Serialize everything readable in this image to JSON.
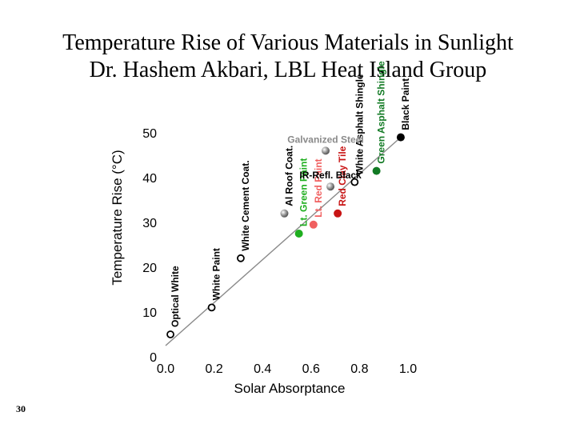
{
  "slide": {
    "title_line1": "Temperature Rise of Various Materials in Sunlight",
    "title_line2": "Dr. Hashem Akbari, LBL Heat Island Group",
    "page_number": "30"
  },
  "colors": {
    "gray_marker": "#8a8a8a",
    "green": "#1fae1f",
    "dark_green": "#127a24",
    "red": "#c81414",
    "light_red": "#f06060",
    "black": "#000000",
    "trend_line": "#8a8a8a"
  },
  "chart_data": {
    "type": "scatter",
    "title": "Temperature Rise of Various Materials in Sunlight",
    "xlabel": "Solar Absorptance",
    "ylabel": "Temperature Rise (°C)",
    "xlim": [
      0.0,
      1.0
    ],
    "ylim": [
      0,
      50
    ],
    "xticks": [
      {
        "value": 0.0,
        "label": "0.0"
      },
      {
        "value": 0.2,
        "label": "0.2"
      },
      {
        "value": 0.4,
        "label": "0.4"
      },
      {
        "value": 0.6,
        "label": "0.6"
      },
      {
        "value": 0.8,
        "label": "0.8"
      },
      {
        "value": 1.0,
        "label": "1.0"
      }
    ],
    "yticks": [
      {
        "value": 0,
        "label": "0"
      },
      {
        "value": 10,
        "label": "10"
      },
      {
        "value": 20,
        "label": "20"
      },
      {
        "value": 30,
        "label": "30"
      },
      {
        "value": 40,
        "label": "40"
      },
      {
        "value": 50,
        "label": "50"
      }
    ],
    "trend_line": {
      "x": [
        0.0,
        0.97
      ],
      "y": [
        2.5,
        49
      ]
    },
    "points": [
      {
        "name": "Optical White",
        "x": 0.02,
        "y": 5,
        "marker": "open",
        "color": "#000000",
        "label_orient": "vertical"
      },
      {
        "name": "White Paint",
        "x": 0.19,
        "y": 11,
        "marker": "open",
        "color": "#000000",
        "label_orient": "vertical"
      },
      {
        "name": "White Cement Coat.",
        "x": 0.31,
        "y": 22,
        "marker": "open",
        "color": "#000000",
        "label_orient": "vertical"
      },
      {
        "name": "Al Roof Coat.",
        "x": 0.49,
        "y": 32,
        "marker": "sphere",
        "color": "#8a8a8a",
        "label_orient": "vertical"
      },
      {
        "name": "Lt. Green Paint",
        "x": 0.55,
        "y": 27.5,
        "marker": "filled",
        "color": "#1fae1f",
        "label_orient": "vertical"
      },
      {
        "name": "Lt. Red Paint",
        "x": 0.61,
        "y": 29.5,
        "marker": "filled",
        "color": "#f06060",
        "label_orient": "vertical"
      },
      {
        "name": "Red Clay Tile",
        "x": 0.71,
        "y": 32,
        "marker": "filled",
        "color": "#c81414",
        "label_orient": "vertical"
      },
      {
        "name": "White Asphalt Shingle",
        "x": 0.78,
        "y": 39,
        "marker": "open",
        "color": "#000000",
        "label_orient": "vertical"
      },
      {
        "name": "Green Asphalt Shingle",
        "x": 0.87,
        "y": 41.5,
        "marker": "filled",
        "color": "#127a24",
        "label_orient": "vertical"
      },
      {
        "name": "Black Paint",
        "x": 0.97,
        "y": 49,
        "marker": "filled",
        "color": "#000000",
        "label_orient": "vertical"
      },
      {
        "name": "IR-Refl. Black",
        "x": 0.68,
        "y": 38,
        "marker": "sphere",
        "color": "#8a8a8a",
        "label_orient": "horizontal"
      },
      {
        "name": "Galvanized Steel",
        "x": 0.66,
        "y": 46,
        "marker": "sphere",
        "color": "#8a8a8a",
        "label_orient": "horizontal"
      }
    ]
  }
}
